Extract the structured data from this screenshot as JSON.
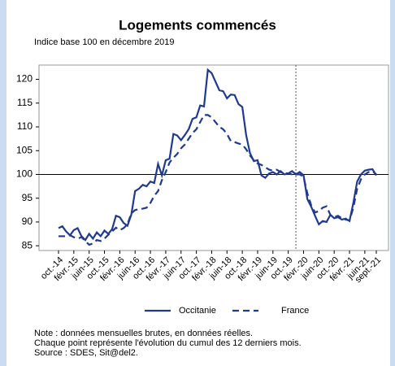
{
  "chart_data": {
    "type": "line",
    "title": "Logements commencés",
    "subtitle": "Indice base 100 en décembre 2019",
    "categories": [
      "oct.-14",
      null,
      null,
      null,
      "févr.-15",
      null,
      null,
      null,
      "juin-15",
      null,
      null,
      null,
      "oct.-15",
      null,
      null,
      null,
      "févr.-16",
      null,
      null,
      null,
      "juin-16",
      null,
      null,
      null,
      "oct.-16",
      null,
      null,
      null,
      "févr.-17",
      null,
      null,
      null,
      "juin-17",
      null,
      null,
      null,
      "oct.-17",
      null,
      null,
      null,
      "févr.-18",
      null,
      null,
      null,
      "juin-18",
      null,
      null,
      null,
      "oct.-18",
      null,
      null,
      null,
      "févr.-19",
      null,
      null,
      null,
      "juin-19",
      null,
      null,
      null,
      "oct.-19",
      null,
      null,
      null,
      "févr.-20",
      null,
      null,
      null,
      "juin-20",
      null,
      null,
      null,
      "oct.-20",
      null,
      null,
      null,
      "févr.-21",
      null,
      null,
      null,
      "juin-21",
      null,
      null,
      "sept.-21"
    ],
    "series": [
      {
        "name": "Occitanie",
        "color": "#1f3a8f",
        "dashed": false,
        "values": [
          88.7,
          89.1,
          88.0,
          87.2,
          88.3,
          88.7,
          87.0,
          86.2,
          87.5,
          86.5,
          87.8,
          87.0,
          88.2,
          87.5,
          88.5,
          91.3,
          91.0,
          89.8,
          89.2,
          91.5,
          96.5,
          97.0,
          97.8,
          97.5,
          98.5,
          98.2,
          102.2,
          99.8,
          103.0,
          103.3,
          108.5,
          108.2,
          107.2,
          108.3,
          109.5,
          111.7,
          112.0,
          114.5,
          114.3,
          122.0,
          121.3,
          119.5,
          117.7,
          117.5,
          116.0,
          116.8,
          116.7,
          114.8,
          114.2,
          108.3,
          104.5,
          102.8,
          103.0,
          99.8,
          99.3,
          100.2,
          100.5,
          100.0,
          100.7,
          100.0,
          100.2,
          100.7,
          100.0,
          100.5,
          99.8,
          94.8,
          93.2,
          91.3,
          89.5,
          90.2,
          90.0,
          91.5,
          90.8,
          91.0,
          90.5,
          90.7,
          90.2,
          94.0,
          98.5,
          100.0,
          100.8,
          101.0,
          101.1,
          99.8
        ]
      },
      {
        "name": "France",
        "color": "#1f3a8f",
        "dashed": true,
        "values": [
          87.0,
          87.0,
          87.0,
          87.2,
          86.8,
          86.5,
          86.8,
          86.0,
          85.2,
          85.5,
          86.2,
          86.0,
          86.5,
          87.3,
          88.0,
          88.8,
          88.3,
          88.7,
          89.5,
          91.8,
          92.5,
          92.7,
          92.8,
          93.0,
          94.0,
          95.5,
          96.5,
          98.8,
          100.5,
          102.5,
          103.5,
          104.3,
          105.5,
          106.3,
          107.5,
          108.7,
          109.5,
          111.0,
          112.5,
          112.5,
          112.0,
          111.0,
          110.0,
          109.5,
          108.5,
          107.0,
          106.8,
          106.5,
          106.3,
          105.3,
          104.0,
          103.0,
          102.3,
          102.0,
          101.5,
          101.0,
          100.8,
          101.0,
          100.5,
          100.3,
          100.2,
          100.0,
          100.0,
          100.0,
          99.5,
          96.0,
          93.5,
          92.0,
          92.3,
          93.0,
          93.3,
          91.5,
          91.0,
          91.3,
          90.8,
          90.5,
          90.3,
          93.0,
          97.0,
          99.0,
          100.0,
          100.5,
          100.7,
          100.0
        ]
      }
    ],
    "ylim": [
      84,
      123
    ],
    "yticks": [
      85,
      90,
      95,
      100,
      105,
      110,
      115,
      120
    ],
    "reference_y": 100,
    "reference_x_index": 62,
    "legend": "bottom",
    "notes": [
      "Note : données mensuelles brutes, en données réelles.",
      "Chaque point représente l'évolution du cumul des 12 derniers mois.",
      "Source : SDES, Sit@del2."
    ]
  }
}
